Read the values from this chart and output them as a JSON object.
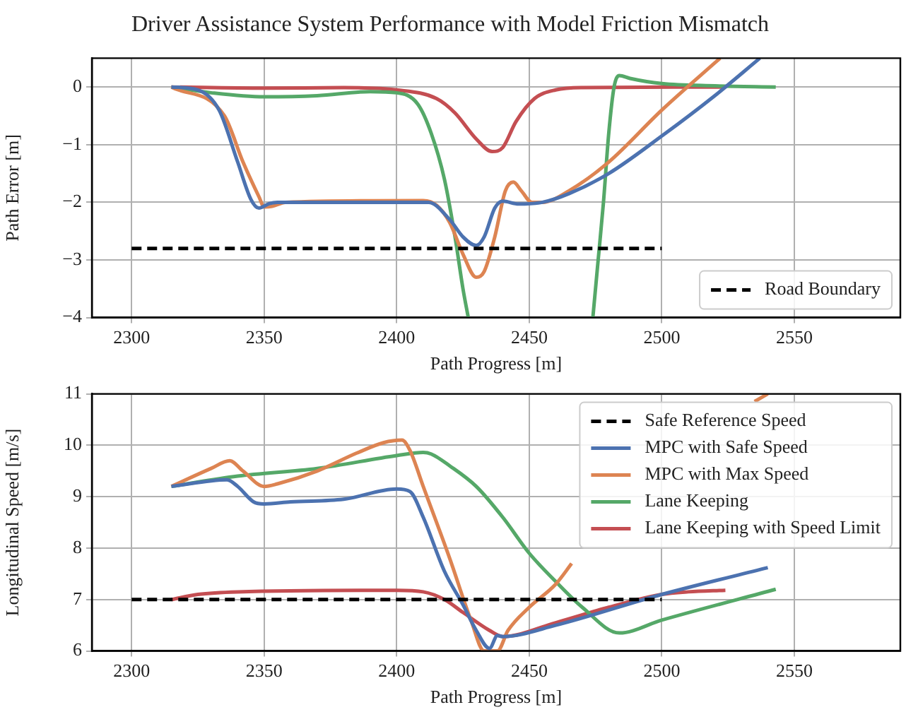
{
  "chart_data": [
    {
      "type": "line",
      "title": "Driver Assistance System Performance with Model Friction Mismatch",
      "xlabel": "Path Progress [m]",
      "ylabel": "Path Error [m]",
      "xlim": [
        2285,
        2590
      ],
      "ylim": [
        -4,
        0.5
      ],
      "xticks": [
        2300,
        2350,
        2400,
        2450,
        2500,
        2550
      ],
      "yticks": [
        -4,
        -3,
        -2,
        -1,
        0
      ],
      "grid": true,
      "legend": "bottom right",
      "series": [
        {
          "name": "Road Boundary",
          "color": "#000000",
          "line_style": "dashed",
          "x": [
            2300,
            2500
          ],
          "values": [
            -2.8,
            -2.8
          ]
        },
        {
          "color": "#4c72b0",
          "x": [
            2315,
            2325,
            2333,
            2340,
            2345,
            2348,
            2352,
            2355,
            2400,
            2412,
            2420,
            2425,
            2430,
            2433,
            2437,
            2440,
            2446,
            2455,
            2465,
            2480,
            2500,
            2520,
            2537
          ],
          "values": [
            0,
            -0.05,
            -0.4,
            -1.3,
            -1.95,
            -2.1,
            -2.02,
            -2,
            -2,
            -2,
            -2.3,
            -2.6,
            -2.75,
            -2.6,
            -2.1,
            -1.98,
            -2.03,
            -2,
            -1.85,
            -1.5,
            -0.85,
            -0.15,
            0.5
          ]
        },
        {
          "color": "#dd8452",
          "x": [
            2315,
            2335,
            2342,
            2348,
            2350,
            2353,
            2358,
            2410,
            2415,
            2420,
            2425,
            2430,
            2433,
            2437,
            2441,
            2444,
            2447,
            2451,
            2455,
            2465,
            2480,
            2500,
            2522
          ],
          "values": [
            0,
            -0.5,
            -1.3,
            -1.9,
            -2.08,
            -2.07,
            -2,
            -1.97,
            -2.05,
            -2.35,
            -2.9,
            -3.3,
            -3.2,
            -2.6,
            -1.8,
            -1.65,
            -1.8,
            -2,
            -2,
            -1.8,
            -1.3,
            -0.4,
            0.5
          ]
        },
        {
          "color": "#55a868",
          "x": [
            2315,
            2330,
            2350,
            2370,
            2390,
            2400,
            2408,
            2413,
            2418,
            2422,
            2425,
            2427,
            2450,
            2474,
            2476,
            2478,
            2480,
            2482,
            2484,
            2488,
            2500,
            2520,
            2543
          ],
          "values": [
            0,
            -0.1,
            -0.17,
            -0.15,
            -0.08,
            -0.1,
            -0.3,
            -0.8,
            -1.6,
            -2.6,
            -3.5,
            -4,
            null,
            -4,
            -3,
            -2,
            -0.8,
            0,
            0.2,
            0.15,
            0.06,
            0.02,
            0
          ]
        },
        {
          "color": "#c44e52",
          "x": [
            2315,
            2350,
            2380,
            2400,
            2415,
            2422,
            2430,
            2436,
            2440,
            2445,
            2452,
            2460,
            2470,
            2524
          ],
          "values": [
            0,
            -0.02,
            -0.01,
            -0.05,
            -0.2,
            -0.45,
            -0.9,
            -1.12,
            -1.05,
            -0.6,
            -0.2,
            -0.05,
            -0.01,
            0
          ]
        }
      ]
    },
    {
      "type": "line",
      "xlabel": "Path Progress [m]",
      "ylabel": "Longitudinal Speed [m/s]",
      "xlim": [
        2285,
        2590
      ],
      "ylim": [
        6,
        11
      ],
      "xticks": [
        2300,
        2350,
        2400,
        2450,
        2500,
        2550
      ],
      "yticks": [
        6,
        7,
        8,
        9,
        10,
        11
      ],
      "grid": true,
      "legend": "top right",
      "series": [
        {
          "name": "Safe Reference Speed",
          "color": "#000000",
          "line_style": "dashed",
          "x": [
            2300,
            2500
          ],
          "values": [
            7,
            7
          ]
        },
        {
          "name": "MPC with Safe Speed",
          "color": "#4c72b0",
          "x": [
            2315,
            2336,
            2340,
            2346,
            2350,
            2360,
            2380,
            2400,
            2405,
            2410,
            2418,
            2425,
            2430,
            2435,
            2438,
            2440,
            2460,
            2500,
            2540
          ],
          "values": [
            9.2,
            9.33,
            9.2,
            8.9,
            8.86,
            8.9,
            8.95,
            9.15,
            9.1,
            8.6,
            7.55,
            6.9,
            6.4,
            6.05,
            6.3,
            6.28,
            6.5,
            7.1,
            7.62
          ]
        },
        {
          "name": "MPC with Max Speed",
          "color": "#dd8452",
          "x": [
            2315,
            2330,
            2337,
            2342,
            2350,
            2355,
            2370,
            2385,
            2395,
            2402,
            2405,
            2410,
            2420,
            2428,
            2433,
            2435,
            2438,
            2442,
            2450,
            2460,
            2466,
            2500,
            2535,
            2540
          ],
          "values": [
            9.2,
            9.55,
            9.7,
            9.5,
            9.2,
            9.25,
            9.5,
            9.85,
            10.05,
            10.1,
            9.9,
            9.2,
            7.8,
            6.6,
            6,
            6,
            6,
            6.4,
            6.85,
            7.3,
            7.7,
            null,
            10.85,
            11
          ]
        },
        {
          "name": "Lane Keeping",
          "color": "#55a868",
          "x": [
            2315,
            2340,
            2370,
            2400,
            2410,
            2413,
            2420,
            2430,
            2440,
            2450,
            2460,
            2470,
            2484,
            2500,
            2543
          ],
          "values": [
            9.2,
            9.4,
            9.55,
            9.8,
            9.86,
            9.83,
            9.6,
            9.2,
            8.6,
            7.9,
            7.35,
            6.85,
            6.35,
            6.6,
            7.2
          ]
        },
        {
          "name": "Lane Keeping with Speed Limit",
          "color": "#c44e52",
          "x": [
            2315,
            2325,
            2340,
            2400,
            2410,
            2418,
            2425,
            2435,
            2440,
            2460,
            2480,
            2500,
            2510,
            2524
          ],
          "values": [
            7,
            7.1,
            7.15,
            7.18,
            7.15,
            7,
            6.75,
            6.4,
            6.28,
            6.55,
            6.85,
            7.1,
            7.15,
            7.18
          ]
        }
      ]
    }
  ]
}
